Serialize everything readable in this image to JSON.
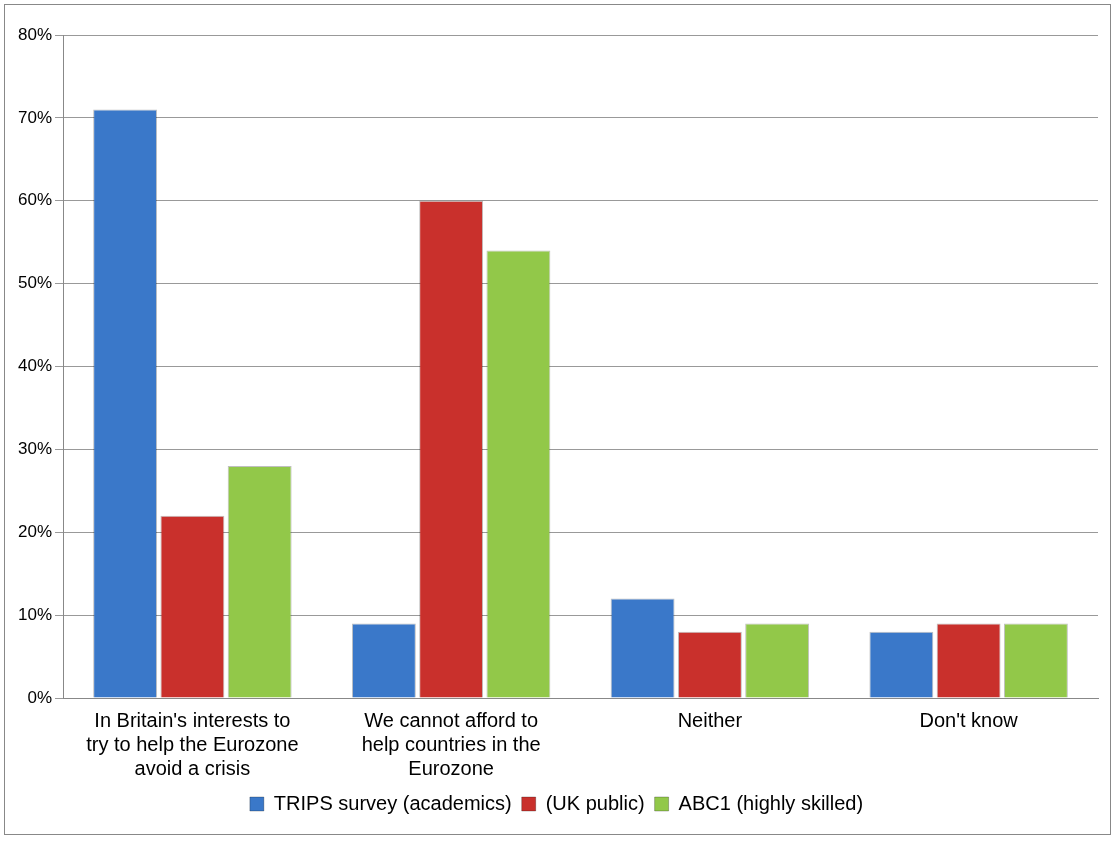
{
  "chart_data": {
    "type": "bar",
    "categories": [
      "In Britain's interests to try to help the Eurozone avoid a crisis",
      "We cannot afford to help countries in the Eurozone",
      "Neither",
      "Don't know"
    ],
    "series": [
      {
        "name": "TRIPS survey (academics)",
        "color": "#3a78c9",
        "values": [
          71,
          9,
          12,
          8
        ]
      },
      {
        "name": "(UK public)",
        "color": "#c9302c",
        "values": [
          22,
          60,
          8,
          9
        ]
      },
      {
        "name": "ABC1 (highly skilled)",
        "color": "#92c849",
        "values": [
          28,
          54,
          9,
          9
        ]
      }
    ],
    "ylim": [
      0,
      80
    ],
    "yticks": [
      {
        "value": 0,
        "label": "0%"
      },
      {
        "value": 10,
        "label": "10%"
      },
      {
        "value": 20,
        "label": "20%"
      },
      {
        "value": 30,
        "label": "30%"
      },
      {
        "value": 40,
        "label": "40%"
      },
      {
        "value": 50,
        "label": "50%"
      },
      {
        "value": 60,
        "label": "60%"
      },
      {
        "value": 70,
        "label": "70%"
      },
      {
        "value": 80,
        "label": "80%"
      }
    ],
    "grid": "y",
    "legend": "bottom"
  }
}
